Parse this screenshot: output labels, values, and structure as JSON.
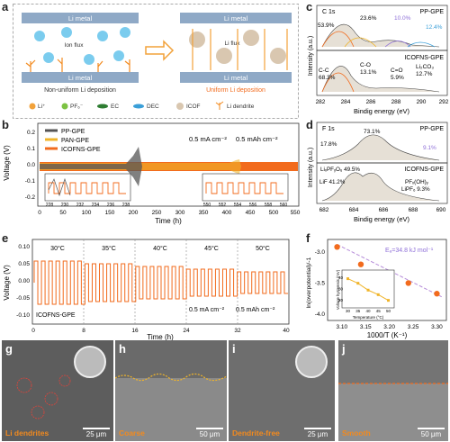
{
  "panels": {
    "a": "a",
    "b": "b",
    "c": "c",
    "d": "d",
    "e": "e",
    "f": "f",
    "g": "g",
    "h": "h",
    "i": "i",
    "j": "j"
  },
  "a": {
    "left_top": "Li metal",
    "left_bottom": "Li metal",
    "left_caption": "Non-uniform Li deposition",
    "right_top": "Li metal",
    "right_bottom": "Li metal",
    "right_caption": "Uniform Li deposition",
    "ion_flux_left": "Ion flux",
    "ion_flux_right": "Li flux",
    "legend": [
      "Li⁺",
      "PF₆⁻",
      "EC",
      "DEC",
      "ICOF",
      "Li dendrite"
    ],
    "colors": {
      "li": "#f2a23a",
      "pf6": "#7cc242",
      "ec": "#2e7d32",
      "dec": "#3a9fd8",
      "icof": "#d9c7b0",
      "dendrite": "#f28a1e"
    }
  },
  "b": {
    "legend": [
      "PP-GPE",
      "PAN-GPE",
      "ICOFNS-GPE"
    ],
    "colors": [
      "#555555",
      "#f0b429",
      "#f26b1d"
    ],
    "cond1": "0.5 mA cm⁻²",
    "cond2": "0.5 mAh cm⁻²",
    "ylabel": "Voltage (V)",
    "xlabel": "Time (h)",
    "xticks": [
      "0",
      "50",
      "100",
      "150",
      "200",
      "250",
      "300",
      "350",
      "400",
      "450",
      "500",
      "550"
    ],
    "yticks": [
      "0.2",
      "0.1",
      "0.0",
      "-0.1",
      "-0.2"
    ],
    "inset1_ticks": [
      "228",
      "230",
      "232",
      "234",
      "236",
      "238"
    ],
    "inset2_ticks": [
      "550",
      "552",
      "554",
      "556",
      "558",
      "560"
    ]
  },
  "c": {
    "title": "C 1s",
    "top_label": "PP-GPE",
    "bottom_label": "ICOFNS-GPE",
    "top_peaks": [
      "53.9%",
      "23.6%",
      "10.0%",
      "12.4%"
    ],
    "bottom_peaks": [
      "C-C",
      "68.3%",
      "C-O",
      "13.1%",
      "C=O",
      "5.9%",
      "Li₂CO₃",
      "12.7%"
    ],
    "ylabel": "Intensity (a.u.)",
    "xlabel": "Bindig energy (eV)",
    "xticks": [
      "282",
      "284",
      "286",
      "288",
      "290",
      "292"
    ]
  },
  "d": {
    "title": "F 1s",
    "top_label": "PP-GPE",
    "bottom_label": "ICOFNS-GPE",
    "top_peaks": [
      "17.8%",
      "73.1%",
      "9.1%"
    ],
    "bottom_peaks": [
      "LiₓPFᵧOᵤ 49.5%",
      "LiF 41.2%",
      "PFₓ(OH)ᵧ",
      "LiPF₆ 9.3%"
    ],
    "ylabel": "Intensity (a.u.)",
    "xlabel": "Bindig energy (eV)",
    "xticks": [
      "682",
      "684",
      "686",
      "688",
      "690"
    ]
  },
  "e": {
    "temps": [
      "30°C",
      "35°C",
      "40°C",
      "45°C",
      "50°C"
    ],
    "label": "ICOFNS-GPE",
    "cond1": "0.5 mA cm⁻²",
    "cond2": "0.5 mAh cm⁻²",
    "ylabel": "Voltage (V)",
    "xlabel": "Time (h)",
    "xticks": [
      "0",
      "8",
      "16",
      "24",
      "32",
      "40"
    ],
    "yticks": [
      "0.10",
      "0.05",
      "0.00",
      "-0.05",
      "-0.10"
    ]
  },
  "f": {
    "ea": "Eₐ=34.8 kJ mol⁻¹",
    "ylabel": "ln(overpotential)/-1",
    "xlabel": "1000/T (K⁻¹)",
    "xticks": [
      "3.10",
      "3.15",
      "3.20",
      "3.25",
      "3.30"
    ],
    "yticks": [
      "-3.0",
      "-3.5",
      "-4.0"
    ],
    "inset_ylabel": "Voltage hysteresis (mV)",
    "inset_xlabel": "Temperature (°C)",
    "inset_xticks": [
      "30",
      "35",
      "40",
      "45",
      "50"
    ],
    "inset_yticks": [
      "40",
      "30",
      "20"
    ]
  },
  "chart_data": [
    {
      "type": "scatter",
      "title": "",
      "xlabel": "1000/T (K⁻¹)",
      "ylabel": "ln(overpotential)/-1",
      "x": [
        3.3,
        3.24,
        3.19,
        3.14,
        3.09
      ],
      "y": [
        -3.67,
        -3.5,
        -3.35,
        -3.2,
        -2.92
      ],
      "xlim": [
        3.07,
        3.32
      ],
      "ylim": [
        -4.1,
        -2.8
      ]
    },
    {
      "type": "line",
      "title": "",
      "xlabel": "Temperature (°C)",
      "ylabel": "Voltage hysteresis (mV)",
      "x": [
        30,
        35,
        40,
        45,
        50
      ],
      "series": [
        {
          "values": [
            39,
            35,
            29,
            25,
            20
          ]
        }
      ],
      "ylim": [
        15,
        45
      ]
    }
  ],
  "g": {
    "label": "Li dendrites",
    "scale": "25 μm"
  },
  "h": {
    "label": "Coarse",
    "scale": "50 μm"
  },
  "i": {
    "label": "Dendrite-free",
    "scale": "25 μm"
  },
  "j": {
    "label": "Smooth",
    "scale": "50 μm"
  }
}
